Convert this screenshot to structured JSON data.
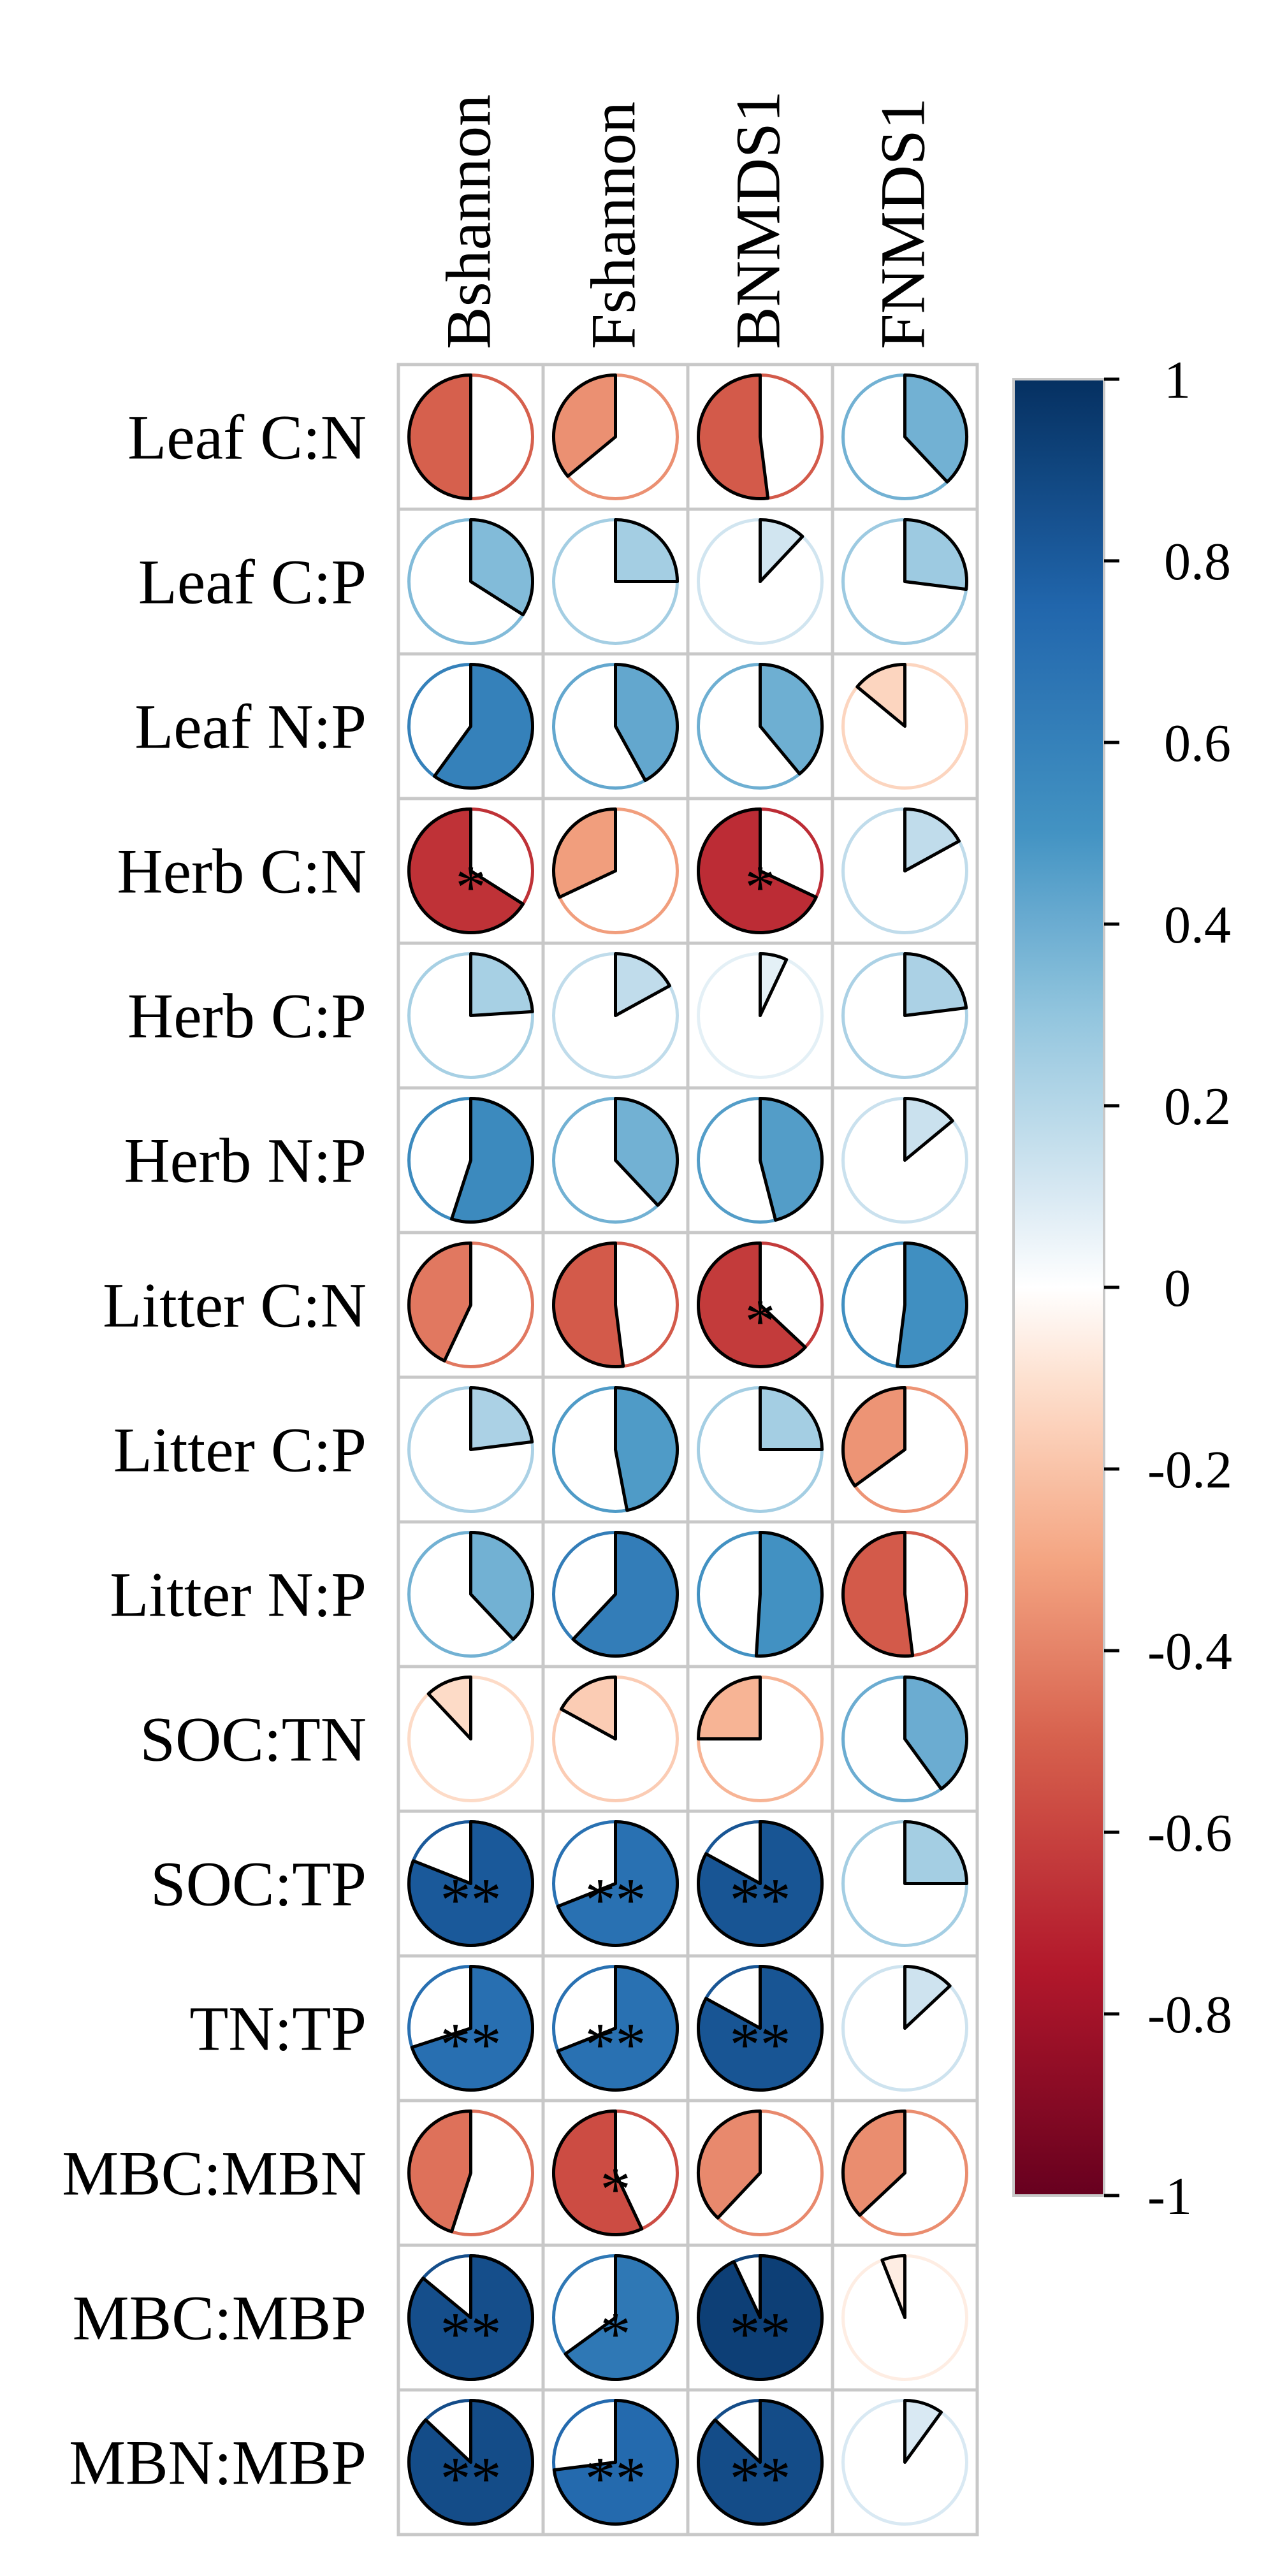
{
  "chart_data": {
    "type": "heatmap",
    "style": "correlation-pie-matrix",
    "title": "",
    "columns": [
      "Bshannon",
      "Fshannon",
      "BNMDS1",
      "FNMDS1"
    ],
    "rows": [
      "Leaf C:N",
      "Leaf C:P",
      "Leaf N:P",
      "Herb C:N",
      "Herb C:P",
      "Herb N:P",
      "Litter C:N",
      "Litter C:P",
      "Litter N:P",
      "SOC:TN",
      "SOC:TP",
      "TN:TP",
      "MBC:MBN",
      "MBC:MBP",
      "MBN:MBP"
    ],
    "values": [
      [
        -0.5,
        -0.36,
        -0.52,
        0.38
      ],
      [
        0.34,
        0.25,
        0.12,
        0.27
      ],
      [
        0.6,
        0.42,
        0.39,
        -0.14
      ],
      [
        -0.66,
        -0.32,
        -0.68,
        0.17
      ],
      [
        0.24,
        0.17,
        0.07,
        0.23
      ],
      [
        0.55,
        0.38,
        0.46,
        0.14
      ],
      [
        -0.43,
        -0.52,
        -0.63,
        0.52
      ],
      [
        0.23,
        0.47,
        0.25,
        -0.35
      ],
      [
        0.38,
        0.62,
        0.51,
        -0.52
      ],
      [
        -0.12,
        -0.17,
        -0.25,
        0.4
      ],
      [
        0.81,
        0.69,
        0.83,
        0.25
      ],
      [
        0.7,
        0.69,
        0.83,
        0.13
      ],
      [
        -0.45,
        -0.57,
        -0.38,
        -0.37
      ],
      [
        0.86,
        0.65,
        0.93,
        -0.06
      ],
      [
        0.87,
        0.73,
        0.87,
        0.1
      ]
    ],
    "significance": [
      [
        "",
        "",
        "",
        ""
      ],
      [
        "",
        "",
        "",
        ""
      ],
      [
        "",
        "",
        "",
        ""
      ],
      [
        "*",
        "",
        "*",
        ""
      ],
      [
        "",
        "",
        "",
        ""
      ],
      [
        "",
        "",
        "",
        ""
      ],
      [
        "",
        "",
        "*",
        ""
      ],
      [
        "",
        "",
        "",
        ""
      ],
      [
        "",
        "",
        "",
        ""
      ],
      [
        "",
        "",
        "",
        ""
      ],
      [
        "**",
        "**",
        "**",
        ""
      ],
      [
        "**",
        "**",
        "**",
        ""
      ],
      [
        "",
        "*",
        "",
        ""
      ],
      [
        "**",
        "*",
        "**",
        ""
      ],
      [
        "**",
        "**",
        "**",
        ""
      ]
    ],
    "colorbar": {
      "range": [
        -1,
        1
      ],
      "tick_labels": [
        "1",
        "0.8",
        "0.6",
        "0.4",
        "0.2",
        "0",
        "-0.2",
        "-0.4",
        "-0.6",
        "-0.8",
        "-1"
      ],
      "tick_values": [
        1,
        0.8,
        0.6,
        0.4,
        0.2,
        0,
        -0.2,
        -0.4,
        -0.6,
        -0.8,
        -1
      ]
    },
    "colors": {
      "low": "#67001f",
      "mid": "#ffffff",
      "high": "#053061",
      "grid": "#c8c8c8"
    },
    "legend": "right"
  }
}
